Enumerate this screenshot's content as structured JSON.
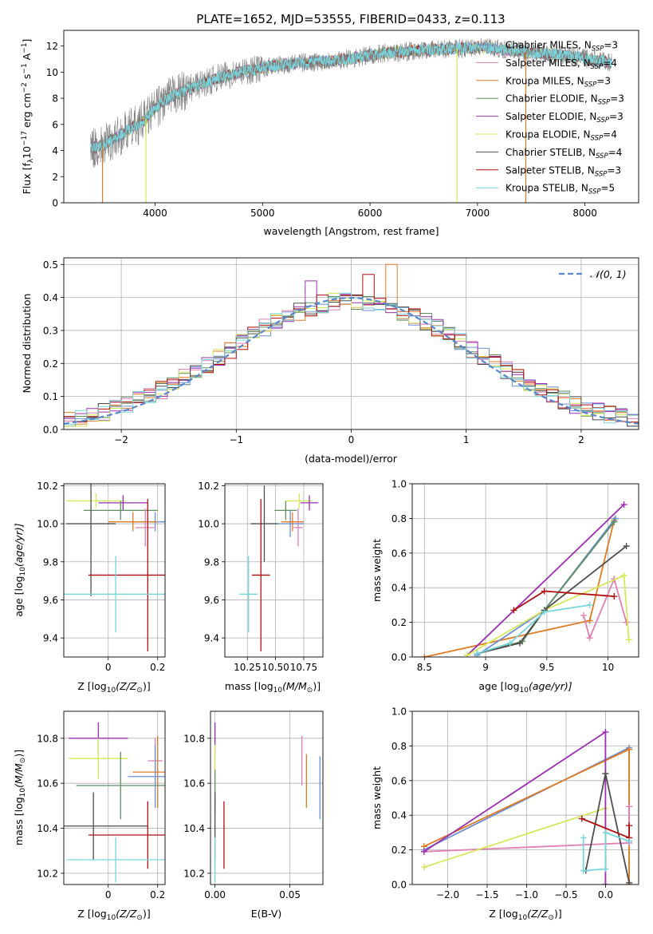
{
  "figure": {
    "title": "PLATE=1652, MJD=53555, FIBERID=0433, z=0.113"
  },
  "colors": {
    "chabrier_miles": "#6b8fd6",
    "salpeter_miles": "#e07fb4",
    "kroupa_miles": "#df7c22",
    "chabrier_elodie": "#5f8f60",
    "salpeter_elodie": "#9b2fb0",
    "kroupa_elodie": "#d6e85a",
    "chabrier_stelib": "#4d4d4d",
    "salpeter_stelib": "#b00f0f",
    "kroupa_stelib": "#77d6dd",
    "gaussian": "#5a86cc",
    "data": "#808080"
  },
  "chart_data": [
    {
      "id": "spectrum",
      "type": "line",
      "xlabel": "wavelength [Angstrom, rest frame]",
      "ylabel": "Flux [f",
      "ylabel_parts": [
        "Flux [f",
        "λ",
        "10",
        "−17",
        " erg cm",
        "−2",
        " s",
        "−1",
        " A",
        "−1",
        "]"
      ],
      "xlim": [
        3150,
        8500
      ],
      "ylim": [
        0,
        13.2
      ],
      "xticks": [
        4000,
        5000,
        6000,
        7000,
        8000
      ],
      "yticks": [
        0,
        2,
        4,
        6,
        8,
        10,
        12
      ],
      "grid": false,
      "legend_placement": "top-right",
      "legend": [
        {
          "key": "chabrier_miles",
          "label": "Chabrier MILES, N",
          "sub": "SSP",
          "suffix": "=3"
        },
        {
          "key": "salpeter_miles",
          "label": "Salpeter MILES, N",
          "sub": "SSP",
          "suffix": "=4"
        },
        {
          "key": "kroupa_miles",
          "label": "Kroupa MILES, N",
          "sub": "SSP",
          "suffix": "=3"
        },
        {
          "key": "chabrier_elodie",
          "label": "Chabrier ELODIE, N",
          "sub": "SSP",
          "suffix": "=3"
        },
        {
          "key": "salpeter_elodie",
          "label": "Salpeter ELODIE, N",
          "sub": "SSP",
          "suffix": "=3"
        },
        {
          "key": "kroupa_elodie",
          "label": "Kroupa ELODIE, N",
          "sub": "SSP",
          "suffix": "=4"
        },
        {
          "key": "chabrier_stelib",
          "label": "Chabrier STELIB, N",
          "sub": "SSP",
          "suffix": "=4"
        },
        {
          "key": "salpeter_stelib",
          "label": "Salpeter STELIB, N",
          "sub": "SSP",
          "suffix": "=3"
        },
        {
          "key": "kroupa_stelib",
          "label": "Kroupa STELIB, N",
          "sub": "SSP",
          "suffix": "=5"
        }
      ],
      "continuum": {
        "x": [
          3400,
          3500,
          3600,
          3700,
          3800,
          3900,
          4000,
          4100,
          4200,
          4300,
          4400,
          4600,
          4800,
          5000,
          5200,
          5500,
          5800,
          6000,
          6200,
          6500,
          6800,
          7000,
          7300,
          7600,
          7900,
          8250
        ],
        "y": [
          4.2,
          4.3,
          4.8,
          5.3,
          5.8,
          6.3,
          7.2,
          7.9,
          8.3,
          8.7,
          9.0,
          9.6,
          10.0,
          10.3,
          10.6,
          10.8,
          11.0,
          11.3,
          11.5,
          11.7,
          11.8,
          11.9,
          11.7,
          11.4,
          11.2,
          10.7
        ]
      },
      "drop_lines": [
        {
          "x": 3510,
          "key": "kroupa_miles"
        },
        {
          "x": 3915,
          "key": "kroupa_elodie"
        },
        {
          "x": 6810,
          "key": "kroupa_elodie"
        },
        {
          "x": 7450,
          "key": "kroupa_miles"
        }
      ]
    },
    {
      "id": "residuals",
      "type": "histogram",
      "xlabel": "(data-model)/error",
      "ylabel": "Normed distribution",
      "xlim": [
        -2.5,
        2.5
      ],
      "ylim": [
        0,
        0.52
      ],
      "xticks": [
        -2,
        -1,
        0,
        1,
        2
      ],
      "yticks": [
        0.0,
        0.1,
        0.2,
        0.3,
        0.4,
        0.5
      ],
      "grid": true,
      "legend_placement": "top-right",
      "legend": [
        {
          "key": "gaussian",
          "label": "𝒩(0, 1)"
        }
      ],
      "bin_width": 0.1,
      "series_keys": [
        "chabrier_miles",
        "salpeter_miles",
        "kroupa_miles",
        "chabrier_elodie",
        "salpeter_elodie",
        "kroupa_elodie",
        "chabrier_stelib",
        "salpeter_stelib",
        "kroupa_stelib"
      ],
      "peaks": [
        {
          "x": 0.35,
          "y": 0.5,
          "key": "kroupa_miles"
        },
        {
          "x": 0.15,
          "y": 0.47,
          "key": "salpeter_stelib"
        },
        {
          "x": -0.35,
          "y": 0.45,
          "key": "salpeter_elodie"
        }
      ]
    },
    {
      "id": "age_vs_Z",
      "type": "errorbar",
      "xlabel": "Z [log",
      "xlabel_parts": [
        "Z [log",
        "10",
        "(Z/Z",
        "⊙",
        ")]"
      ],
      "ylabel_parts": [
        "age  [log",
        "10",
        "(age/yr)]"
      ],
      "xlim": [
        -0.18,
        0.23
      ],
      "ylim": [
        9.3,
        10.21
      ],
      "xticks": [
        0.0,
        0.2
      ],
      "yticks": [
        9.4,
        9.6,
        9.8,
        10.0,
        10.2
      ],
      "grid": true,
      "points": [
        {
          "key": "kroupa_elodie",
          "x": -0.05,
          "y": 10.12,
          "xerr": 0.12,
          "yerr": 0.04
        },
        {
          "key": "salpeter_elodie",
          "x": 0.06,
          "y": 10.11,
          "xerr": 0.1,
          "yerr": 0.04
        },
        {
          "key": "chabrier_elodie",
          "x": 0.05,
          "y": 10.07,
          "xerr": 0.15,
          "yerr": 0.05
        },
        {
          "key": "chabrier_miles",
          "x": 0.19,
          "y": 10.01,
          "xerr": 0.1,
          "yerr": 0.05
        },
        {
          "key": "kroupa_miles",
          "x": 0.1,
          "y": 10.01,
          "xerr": 0.1,
          "yerr": 0.05
        },
        {
          "key": "salpeter_miles",
          "x": 0.15,
          "y": 9.98,
          "xerr": 0.04,
          "yerr": 0.1
        },
        {
          "key": "chabrier_stelib",
          "x": -0.07,
          "y": 10.0,
          "xerr": 0.1,
          "yerr": 0.38
        },
        {
          "key": "salpeter_stelib",
          "x": 0.16,
          "y": 9.73,
          "xerr": 0.24,
          "yerr": 0.4
        },
        {
          "key": "kroupa_stelib",
          "x": 0.03,
          "y": 9.63,
          "xerr": 0.22,
          "yerr": 0.2
        }
      ]
    },
    {
      "id": "age_vs_mass",
      "type": "errorbar",
      "xlabel_parts": [
        "mass [log",
        "10",
        "(M/M",
        "⊙",
        ")]"
      ],
      "xlim": [
        10.05,
        10.92
      ],
      "ylim": [
        9.3,
        10.21
      ],
      "xticks": [
        10.25,
        10.5,
        10.75
      ],
      "xtick_labels": [
        "10.25",
        "10.50",
        "10.75"
      ],
      "yticks": [
        9.4,
        9.6,
        9.8,
        10.0,
        10.2
      ],
      "grid": true,
      "points": [
        {
          "key": "kroupa_elodie",
          "x": 10.71,
          "y": 10.12,
          "xerr": 0.12,
          "yerr": 0.04
        },
        {
          "key": "salpeter_elodie",
          "x": 10.8,
          "y": 10.11,
          "xerr": 0.08,
          "yerr": 0.04
        },
        {
          "key": "chabrier_elodie",
          "x": 10.59,
          "y": 10.07,
          "xerr": 0.1,
          "yerr": 0.05
        },
        {
          "key": "chabrier_miles",
          "x": 10.63,
          "y": 10.0,
          "xerr": 0.12,
          "yerr": 0.07
        },
        {
          "key": "kroupa_miles",
          "x": 10.65,
          "y": 10.01,
          "xerr": 0.1,
          "yerr": 0.05
        },
        {
          "key": "salpeter_miles",
          "x": 10.7,
          "y": 9.98,
          "xerr": 0.04,
          "yerr": 0.1
        },
        {
          "key": "chabrier_stelib",
          "x": 10.4,
          "y": 10.0,
          "xerr": 0.12,
          "yerr": 0.2
        },
        {
          "key": "salpeter_stelib",
          "x": 10.37,
          "y": 9.73,
          "xerr": 0.08,
          "yerr": 0.4
        },
        {
          "key": "kroupa_stelib",
          "x": 10.26,
          "y": 9.63,
          "xerr": 0.08,
          "yerr": 0.2
        }
      ]
    },
    {
      "id": "weight_vs_age",
      "type": "line",
      "xlabel_parts": [
        "age  [log",
        "10",
        "(age/yr)]"
      ],
      "ylabel": "mass weight",
      "xlim": [
        8.4,
        10.25
      ],
      "ylim": [
        0,
        1.0
      ],
      "xticks": [
        8.5,
        9.0,
        9.5,
        10.0
      ],
      "yticks": [
        0.0,
        0.2,
        0.4,
        0.6,
        0.8,
        1.0
      ],
      "grid": true,
      "series": [
        {
          "key": "kroupa_miles",
          "x": [
            8.5,
            9.85,
            10.05
          ],
          "y": [
            0.0,
            0.21,
            0.79
          ]
        },
        {
          "key": "chabrier_miles",
          "x": [
            8.93,
            9.48,
            10.06
          ],
          "y": [
            0.01,
            0.27,
            0.8
          ]
        },
        {
          "key": "salpeter_miles",
          "x": [
            9.8,
            9.85,
            10.05,
            10.15
          ],
          "y": [
            0.24,
            0.11,
            0.45,
            0.2
          ]
        },
        {
          "key": "chabrier_elodie",
          "x": [
            8.93,
            9.3,
            9.48,
            10.05
          ],
          "y": [
            0.02,
            0.09,
            0.27,
            0.78
          ]
        },
        {
          "key": "salpeter_elodie",
          "x": [
            8.85,
            10.13
          ],
          "y": [
            0.01,
            0.88
          ]
        },
        {
          "key": "kroupa_elodie",
          "x": [
            8.85,
            9.48,
            10.13,
            10.17
          ],
          "y": [
            0.01,
            0.27,
            0.47,
            0.1
          ]
        },
        {
          "key": "chabrier_stelib",
          "x": [
            8.93,
            9.28,
            9.48,
            10.15
          ],
          "y": [
            0.02,
            0.08,
            0.27,
            0.64
          ]
        },
        {
          "key": "salpeter_stelib",
          "x": [
            9.23,
            9.48,
            10.05
          ],
          "y": [
            0.27,
            0.38,
            0.35
          ]
        },
        {
          "key": "kroupa_stelib",
          "x": [
            8.93,
            9.2,
            9.48,
            9.85
          ],
          "y": [
            0.02,
            0.08,
            0.26,
            0.3
          ]
        }
      ]
    },
    {
      "id": "mass_vs_Z",
      "type": "errorbar",
      "xlabel_parts": [
        "Z [log",
        "10",
        "(Z/Z",
        "⊙",
        ")]"
      ],
      "ylabel_parts": [
        "mass [log",
        "10",
        "(M/M",
        "⊙",
        ")]"
      ],
      "xlim": [
        -0.18,
        0.23
      ],
      "ylim": [
        10.15,
        10.92
      ],
      "xticks": [
        0.0,
        0.2
      ],
      "yticks": [
        10.2,
        10.4,
        10.6,
        10.8
      ],
      "grid": true,
      "points": [
        {
          "key": "salpeter_elodie",
          "x": -0.04,
          "y": 10.8,
          "xerr": 0.12,
          "yerr": 0.07
        },
        {
          "key": "kroupa_elodie",
          "x": -0.04,
          "y": 10.71,
          "xerr": 0.12,
          "yerr": 0.09
        },
        {
          "key": "salpeter_miles",
          "x": 0.19,
          "y": 10.7,
          "xerr": 0.03,
          "yerr": 0.1
        },
        {
          "key": "kroupa_miles",
          "x": 0.2,
          "y": 10.65,
          "xerr": 0.1,
          "yerr": 0.16
        },
        {
          "key": "chabrier_miles",
          "x": 0.19,
          "y": 10.63,
          "xerr": 0.11,
          "yerr": 0.14
        },
        {
          "key": "chabrier_elodie",
          "x": 0.05,
          "y": 10.59,
          "xerr": 0.18,
          "yerr": 0.15
        },
        {
          "key": "chabrier_stelib",
          "x": -0.06,
          "y": 10.41,
          "xerr": 0.22,
          "yerr": 0.15
        },
        {
          "key": "salpeter_stelib",
          "x": 0.16,
          "y": 10.37,
          "xerr": 0.24,
          "yerr": 0.15
        },
        {
          "key": "kroupa_stelib",
          "x": 0.03,
          "y": 10.26,
          "xerr": 0.2,
          "yerr": 0.1
        }
      ]
    },
    {
      "id": "mass_vs_ebv",
      "type": "errorbar",
      "xlabel": "E(B-V)",
      "xlim": [
        -0.003,
        0.072
      ],
      "ylim": [
        10.15,
        10.92
      ],
      "xticks": [
        0.0,
        0.05
      ],
      "xtick_labels": [
        "0.00",
        "0.05"
      ],
      "yticks": [
        10.2,
        10.4,
        10.6,
        10.8
      ],
      "grid": true,
      "points": [
        {
          "key": "salpeter_elodie",
          "x": 0.0,
          "y": 10.8,
          "xerr": 0,
          "yerr": 0.07
        },
        {
          "key": "kroupa_elodie",
          "x": 0.0,
          "y": 10.67,
          "xerr": 0,
          "yerr": 0.1
        },
        {
          "key": "chabrier_elodie",
          "x": 0.0,
          "y": 10.56,
          "xerr": 0,
          "yerr": 0.1
        },
        {
          "key": "salpeter_miles",
          "x": 0.058,
          "y": 10.7,
          "xerr": 0,
          "yerr": 0.11
        },
        {
          "key": "kroupa_miles",
          "x": 0.061,
          "y": 10.61,
          "xerr": 0,
          "yerr": 0.12
        },
        {
          "key": "chabrier_miles",
          "x": 0.07,
          "y": 10.58,
          "xerr": 0,
          "yerr": 0.14
        },
        {
          "key": "chabrier_stelib",
          "x": 0.0,
          "y": 10.41,
          "xerr": 0,
          "yerr": 0.15
        },
        {
          "key": "salpeter_stelib",
          "x": 0.006,
          "y": 10.37,
          "xerr": 0,
          "yerr": 0.15
        },
        {
          "key": "kroupa_stelib",
          "x": 0.0,
          "y": 10.26,
          "xerr": 0,
          "yerr": 0.1
        }
      ]
    },
    {
      "id": "weight_vs_Z",
      "type": "line",
      "xlabel_parts": [
        "Z [log",
        "10",
        "(Z/Z",
        "⊙",
        ")]"
      ],
      "ylabel": "mass weight",
      "xlim": [
        -2.45,
        0.42
      ],
      "ylim": [
        0,
        1.0
      ],
      "xticks": [
        -2.0,
        -1.5,
        -1.0,
        -0.5,
        0.0
      ],
      "xtick_labels": [
        "−2.0",
        "−1.5",
        "−1.0",
        "−0.5",
        "0.0"
      ],
      "yticks": [
        0.0,
        0.2,
        0.4,
        0.6,
        0.8,
        1.0
      ],
      "grid": true,
      "series": [
        {
          "key": "chabrier_miles",
          "x": [
            -2.3,
            0.3,
            0.3
          ],
          "y": [
            0.2,
            0.79,
            0.0
          ]
        },
        {
          "key": "kroupa_miles",
          "x": [
            -2.3,
            0.3,
            0.3
          ],
          "y": [
            0.22,
            0.78,
            0.0
          ]
        },
        {
          "key": "salpeter_miles",
          "x": [
            -2.3,
            0.3,
            0.3
          ],
          "y": [
            0.19,
            0.24,
            0.45
          ]
        },
        {
          "key": "kroupa_elodie",
          "x": [
            -2.3,
            0.0,
            0.0
          ],
          "y": [
            0.1,
            0.44,
            0.0
          ]
        },
        {
          "key": "salpeter_elodie",
          "x": [
            -2.3,
            0.0,
            0.0
          ],
          "y": [
            0.19,
            0.88,
            0.0
          ]
        },
        {
          "key": "chabrier_stelib",
          "x": [
            -0.25,
            0.0,
            0.3
          ],
          "y": [
            0.08,
            0.64,
            0.01
          ]
        },
        {
          "key": "salpeter_stelib",
          "x": [
            -0.3,
            0.3,
            0.3
          ],
          "y": [
            0.38,
            0.27,
            0.34
          ]
        },
        {
          "key": "kroupa_stelib",
          "x": [
            -0.28,
            -0.28,
            0.0,
            0.0,
            0.3
          ],
          "y": [
            0.27,
            0.08,
            0.09,
            0.3,
            0.25
          ]
        }
      ]
    }
  ]
}
